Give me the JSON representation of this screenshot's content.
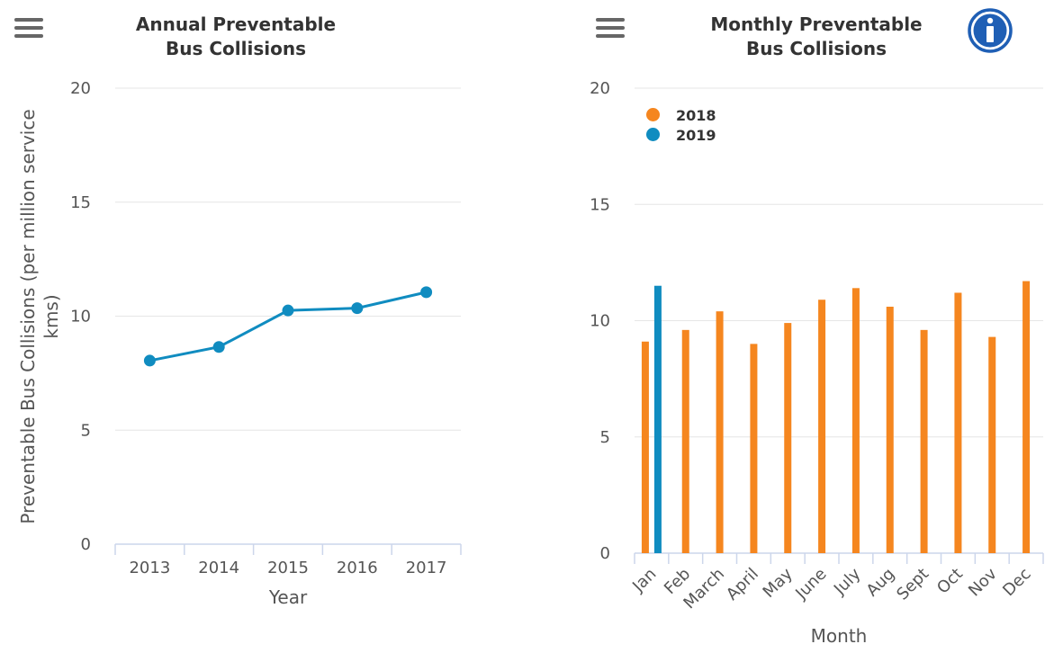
{
  "colors": {
    "series_2013_2017": "#108cc0",
    "series_2018": "#f5861f",
    "series_2019": "#108cc0",
    "grid": "#e6e6e6",
    "axis": "#ccd6eb"
  },
  "left_panel": {
    "title_line1": "Annual Preventable",
    "title_line2": "Bus Collisions",
    "menu_icon": "hamburger-menu-icon"
  },
  "right_panel": {
    "title_line1": "Monthly Preventable",
    "title_line2": "Bus Collisions",
    "menu_icon": "hamburger-menu-icon",
    "info_icon": "info-icon"
  },
  "chart_data": [
    {
      "type": "line",
      "title": "Annual Preventable Bus Collisions",
      "xlabel": "Year",
      "ylabel": "Preventable Bus Collisions (per million service kms)",
      "ylim": [
        0,
        20
      ],
      "yticks": [
        "0",
        "5",
        "10",
        "15",
        "20"
      ],
      "categories": [
        "2013",
        "2014",
        "2015",
        "2016",
        "2017"
      ],
      "values": [
        8.05,
        8.65,
        10.25,
        10.35,
        11.05
      ],
      "grid": true
    },
    {
      "type": "bar",
      "title": "Monthly Preventable Bus Collisions",
      "xlabel": "Month",
      "ylabel": "",
      "ylim": [
        0,
        20
      ],
      "yticks": [
        "0",
        "5",
        "10",
        "15",
        "20"
      ],
      "categories": [
        "Jan",
        "Feb",
        "March",
        "April",
        "May",
        "June",
        "July",
        "Aug",
        "Sept",
        "Oct",
        "Nov",
        "Dec"
      ],
      "series": [
        {
          "name": "2018",
          "values": [
            9.1,
            9.6,
            10.4,
            9.0,
            9.9,
            10.9,
            11.4,
            10.6,
            9.6,
            11.2,
            9.3,
            11.7
          ]
        },
        {
          "name": "2019",
          "values": [
            11.5,
            null,
            null,
            null,
            null,
            null,
            null,
            null,
            null,
            null,
            null,
            null
          ]
        }
      ],
      "legend": "top-left",
      "grid": true
    }
  ]
}
